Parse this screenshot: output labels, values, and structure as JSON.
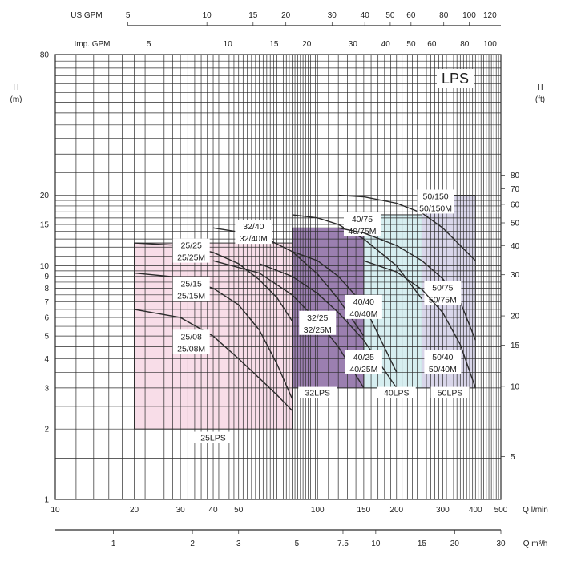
{
  "chart_data": {
    "type": "line",
    "title_badge": "LPS",
    "y_axis_left": {
      "label_line1": "H",
      "label_line2": "(m)",
      "scale": "log",
      "ylim": [
        1,
        80
      ],
      "ticks": [
        1,
        2,
        3,
        4,
        5,
        6,
        7,
        8,
        9,
        10,
        15,
        20,
        80
      ]
    },
    "y_axis_right": {
      "label_line1": "H",
      "label_line2": "(ft)",
      "scale": "log",
      "ticks": [
        5,
        10,
        15,
        20,
        30,
        40,
        50,
        60,
        70,
        80
      ]
    },
    "x_axis_main": {
      "label": "Q  l/min",
      "scale": "log",
      "xlim": [
        10,
        500
      ],
      "ticks": [
        10,
        20,
        30,
        40,
        50,
        100,
        150,
        200,
        300,
        400,
        500
      ]
    },
    "x_axis_m3h": {
      "label": "Q  m³/h",
      "ticks": [
        "1",
        "2",
        "3",
        "5",
        "7.5",
        "10",
        "15",
        "20",
        "30"
      ]
    },
    "x_axis_us_gpm": {
      "label": "US GPM",
      "ticks": [
        5,
        10,
        15,
        20,
        30,
        40,
        50,
        60,
        80,
        100,
        120
      ]
    },
    "x_axis_imp_gpm": {
      "label": "Imp. GPM",
      "ticks": [
        5,
        10,
        15,
        20,
        30,
        40,
        50,
        60,
        80,
        100
      ]
    },
    "regions": [
      {
        "label": "25LPS",
        "color": "#f8dde8",
        "q": [
          20,
          80
        ],
        "h": [
          2,
          12.5
        ]
      },
      {
        "label": "32LPS",
        "color": "#9b7fb0",
        "q": [
          80,
          150
        ],
        "h": [
          3,
          14.5
        ]
      },
      {
        "label": "40LPS",
        "color": "#d6eef0",
        "q": [
          150,
          250
        ],
        "h": [
          3,
          16.5
        ]
      },
      {
        "label": "50LPS",
        "color": "#d9d6ea",
        "q": [
          250,
          400
        ],
        "h": [
          3,
          20
        ]
      }
    ],
    "series": [
      {
        "name": "25/25",
        "name2": "25/25M",
        "x": [
          20,
          30,
          40,
          50,
          60,
          70,
          80
        ],
        "y": [
          12.5,
          12.2,
          11.4,
          10.2,
          8.7,
          7.3,
          5.8
        ]
      },
      {
        "name": "25/15",
        "name2": "25/15M",
        "x": [
          20,
          30,
          40,
          50,
          60,
          70,
          80
        ],
        "y": [
          9.3,
          8.9,
          8.0,
          6.8,
          5.3,
          3.8,
          2.7
        ]
      },
      {
        "name": "25/08",
        "name2": "25/08M",
        "x": [
          20,
          30,
          40,
          50,
          60,
          70,
          80
        ],
        "y": [
          6.5,
          6.0,
          5.0,
          4.0,
          3.3,
          2.8,
          2.4
        ]
      },
      {
        "name": "32/40",
        "name2": "32/40M",
        "x": [
          40,
          60,
          80,
          100,
          120,
          150
        ],
        "y": [
          14.5,
          13.5,
          11.5,
          9.2,
          7.2,
          5.0
        ]
      },
      {
        "name": "32/25",
        "name2": "32/25M",
        "x": [
          40,
          60,
          80,
          100,
          120,
          150
        ],
        "y": [
          10.5,
          9.3,
          7.5,
          5.8,
          4.5,
          3.0
        ]
      },
      {
        "name": "40/75",
        "name2": "40/75M",
        "x": [
          80,
          100,
          120,
          150,
          200,
          250
        ],
        "y": [
          16.5,
          16.0,
          15.0,
          13.0,
          10.0,
          7.2
        ]
      },
      {
        "name": "40/40",
        "name2": "40/40M",
        "x": [
          80,
          100,
          120,
          150,
          200
        ],
        "y": [
          11.5,
          10.5,
          9.0,
          6.8,
          3.5
        ]
      },
      {
        "name": "40/25",
        "name2": "40/25M",
        "x": [
          60,
          80,
          100,
          120,
          150,
          200
        ],
        "y": [
          10.2,
          9.0,
          7.6,
          6.3,
          4.8,
          3.0
        ]
      },
      {
        "name": "50/150",
        "name2": "50/150M",
        "x": [
          120,
          150,
          200,
          250,
          300,
          400
        ],
        "y": [
          20,
          19.7,
          18.5,
          16.8,
          14.5,
          10.5
        ]
      },
      {
        "name": "50/75",
        "name2": "50/75M",
        "x": [
          120,
          150,
          200,
          250,
          300,
          350,
          400
        ],
        "y": [
          14.5,
          13.8,
          12.2,
          10.5,
          8.8,
          7.0,
          4.8
        ]
      },
      {
        "name": "50/40",
        "name2": "50/40M",
        "x": [
          150,
          200,
          250,
          300,
          350,
          400
        ],
        "y": [
          10.5,
          9.4,
          7.9,
          6.3,
          4.6,
          3.0
        ]
      }
    ],
    "grid": true
  }
}
